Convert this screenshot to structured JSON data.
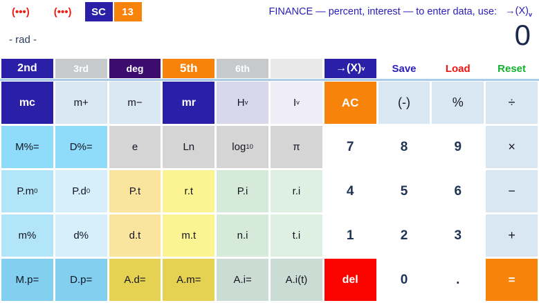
{
  "header": {
    "paren_buttons": [
      "(•••)",
      "(•••)"
    ],
    "badges": [
      {
        "id": "sc",
        "label": "SC"
      },
      {
        "id": "13",
        "label": "13"
      }
    ],
    "hint": {
      "text": "FINANCE — percent, interest — to enter data, use:",
      "key": "→(X)",
      "key_sub": "v"
    }
  },
  "display": {
    "mode": "- rad -",
    "value": "0"
  },
  "tabs": [
    {
      "id": "2nd",
      "label": "2nd",
      "bg": "navy",
      "kind": "filled"
    },
    {
      "id": "3rd",
      "label": "3rd",
      "bg": "tabgray",
      "kind": "filled"
    },
    {
      "id": "deg",
      "label": "deg",
      "bg": "purple",
      "kind": "filled"
    },
    {
      "id": "5th",
      "label": "5th",
      "bg": "orange",
      "kind": "filled"
    },
    {
      "id": "6th",
      "label": "6th",
      "bg": "tabgray",
      "kind": "filled"
    },
    {
      "id": "blank",
      "label": "",
      "bg": "blank",
      "kind": "filled"
    },
    {
      "id": "to-x",
      "label": "→(X)",
      "sub": "v",
      "bg": "navy",
      "kind": "filled"
    },
    {
      "id": "save",
      "label": "Save",
      "kind": "text"
    },
    {
      "id": "load",
      "label": "Load",
      "kind": "text"
    },
    {
      "id": "reset",
      "label": "Reset",
      "kind": "text"
    }
  ],
  "keypad": {
    "rows": [
      [
        {
          "name": "mc",
          "label": "mc",
          "bg": "navy"
        },
        {
          "name": "m-plus",
          "label": "m+",
          "bg": "lblue"
        },
        {
          "name": "m-minus",
          "label": "m−",
          "bg": "lblue"
        },
        {
          "name": "mr",
          "label": "mr",
          "bg": "navy"
        },
        {
          "name": "h-v",
          "label": "H",
          "sub": "v",
          "bg": "lav1"
        },
        {
          "name": "i-v",
          "label": "I",
          "sub": "v",
          "bg": "lav2"
        },
        {
          "name": "ac",
          "label": "AC",
          "bg": "orange"
        },
        {
          "name": "negate",
          "label": "(-)",
          "bg": "lblue",
          "text": "op"
        },
        {
          "name": "percent",
          "label": "%",
          "bg": "lblue",
          "text": "op"
        },
        {
          "name": "divide",
          "label": "÷",
          "bg": "lblue",
          "text": "op"
        }
      ],
      [
        {
          "name": "m-pct-eq",
          "label": "M%=",
          "bg": "sky"
        },
        {
          "name": "d-pct-eq",
          "label": "D%=",
          "bg": "sky"
        },
        {
          "name": "e",
          "label": "e",
          "bg": "gray"
        },
        {
          "name": "ln",
          "label": "Ln",
          "bg": "gray"
        },
        {
          "name": "log10",
          "label": "log",
          "sub": "10",
          "bg": "gray"
        },
        {
          "name": "pi",
          "label": "π",
          "bg": "gray"
        },
        {
          "name": "digit-7",
          "label": "7",
          "bg": "white",
          "text": "digit"
        },
        {
          "name": "digit-8",
          "label": "8",
          "bg": "white",
          "text": "digit"
        },
        {
          "name": "digit-9",
          "label": "9",
          "bg": "white",
          "text": "digit"
        },
        {
          "name": "multiply",
          "label": "×",
          "bg": "lblue",
          "text": "op"
        }
      ],
      [
        {
          "name": "p-m0",
          "label": "P.m",
          "sub": "0",
          "bg": "blue3"
        },
        {
          "name": "p-d0",
          "label": "P.d",
          "sub": "0",
          "bg": "blue4"
        },
        {
          "name": "p-t",
          "label": "P.t",
          "bg": "wheat"
        },
        {
          "name": "r-t",
          "label": "r.t",
          "bg": "yellow"
        },
        {
          "name": "p-i",
          "label": "P.i",
          "bg": "green1"
        },
        {
          "name": "r-i",
          "label": "r.i",
          "bg": "green2"
        },
        {
          "name": "digit-4",
          "label": "4",
          "bg": "white",
          "text": "digit"
        },
        {
          "name": "digit-5",
          "label": "5",
          "bg": "white",
          "text": "digit"
        },
        {
          "name": "digit-6",
          "label": "6",
          "bg": "white",
          "text": "digit"
        },
        {
          "name": "subtract",
          "label": "−",
          "bg": "lblue",
          "text": "op"
        }
      ],
      [
        {
          "name": "m-pct",
          "label": "m%",
          "bg": "blue3"
        },
        {
          "name": "d-pct",
          "label": "d%",
          "bg": "blue4"
        },
        {
          "name": "d-t",
          "label": "d.t",
          "bg": "wheat"
        },
        {
          "name": "m-t",
          "label": "m.t",
          "bg": "yellow"
        },
        {
          "name": "n-i",
          "label": "n.i",
          "bg": "green1"
        },
        {
          "name": "t-i",
          "label": "t.i",
          "bg": "green2"
        },
        {
          "name": "digit-1",
          "label": "1",
          "bg": "white",
          "text": "digit"
        },
        {
          "name": "digit-2",
          "label": "2",
          "bg": "white",
          "text": "digit"
        },
        {
          "name": "digit-3",
          "label": "3",
          "bg": "white",
          "text": "digit"
        },
        {
          "name": "add",
          "label": "+",
          "bg": "lblue",
          "text": "op"
        }
      ],
      [
        {
          "name": "m-p-eq",
          "label": "M.p=",
          "bg": "blue5"
        },
        {
          "name": "d-p-eq",
          "label": "D.p=",
          "bg": "blue5"
        },
        {
          "name": "a-d-eq",
          "label": "A.d=",
          "bg": "gold"
        },
        {
          "name": "a-m-eq",
          "label": "A.m=",
          "bg": "gold"
        },
        {
          "name": "a-i-eq",
          "label": "A.i=",
          "bg": "sage"
        },
        {
          "name": "a-i-t",
          "label": "A.i(t)",
          "bg": "sage"
        },
        {
          "name": "del",
          "label": "del",
          "bg": "red"
        },
        {
          "name": "digit-0",
          "label": "0",
          "bg": "white",
          "text": "digit"
        },
        {
          "name": "decimal",
          "label": ".",
          "bg": "white",
          "text": "digit"
        },
        {
          "name": "equals",
          "label": "=",
          "bg": "orange"
        }
      ]
    ]
  },
  "colors": {
    "accent_navy": "#2a20a8",
    "accent_purple": "#3d0d6e",
    "accent_orange": "#f8830b",
    "accent_red": "#fb0400",
    "hint_blue": "#2a1cb8",
    "load_red": "#f01410",
    "reset_green": "#12b12c",
    "separator_blue": "#abcce9",
    "digit_text": "#1e3253"
  }
}
